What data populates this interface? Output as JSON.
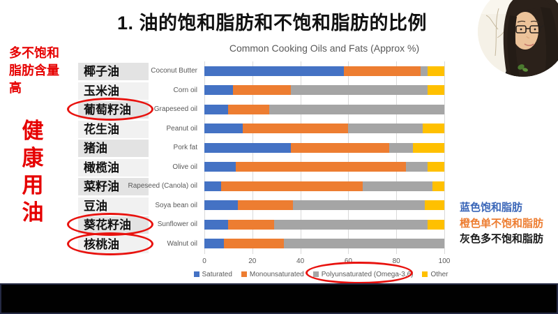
{
  "slide": {
    "title": "1. 油的饱和脂肪和不饱和脂肪的比例"
  },
  "left_panel": {
    "note": "多不饱和脂肪含量高",
    "headline": "健康用油",
    "text_color": "#e60000"
  },
  "oil_list": {
    "items": [
      {
        "label": "椰子油",
        "circled": false
      },
      {
        "label": "玉米油",
        "circled": false
      },
      {
        "label": "葡萄籽油",
        "circled": true
      },
      {
        "label": "花生油",
        "circled": false
      },
      {
        "label": "猪油",
        "circled": false
      },
      {
        "label": "橄榄油",
        "circled": false
      },
      {
        "label": "菜籽油",
        "circled": false
      },
      {
        "label": "豆油",
        "circled": false
      },
      {
        "label": "葵花籽油",
        "circled": true
      },
      {
        "label": "核桃油",
        "circled": true
      }
    ]
  },
  "chart_data": {
    "type": "bar",
    "orientation": "horizontal",
    "stacked": true,
    "title": "Common Cooking Oils and Fats (Approx %)",
    "categories": [
      "Coconut Butter",
      "Corn oil",
      "Grapeseed oil",
      "Peanut oil",
      "Pork fat",
      "Olive oil",
      "Rapeseed (Canola) oil",
      "Soya bean oil",
      "Sunflower oil",
      "Walnut oil"
    ],
    "series": [
      {
        "name": "Saturated",
        "color": "#4472c4",
        "values": [
          58,
          12,
          10,
          16,
          36,
          13,
          7,
          14,
          10,
          8
        ]
      },
      {
        "name": "Monounsaturated",
        "color": "#ed7d31",
        "values": [
          32,
          24,
          17,
          44,
          41,
          71,
          59,
          23,
          19,
          25
        ]
      },
      {
        "name": "Polyunsaturated (Omega-3,6)",
        "color": "#a5a5a5",
        "values": [
          3,
          57,
          73,
          31,
          10,
          9,
          29,
          55,
          64,
          67
        ]
      },
      {
        "name": "Other",
        "color": "#ffc000",
        "values": [
          7,
          7,
          0,
          9,
          13,
          7,
          5,
          8,
          7,
          0
        ]
      }
    ],
    "xlim": [
      0,
      100
    ],
    "x_ticks": [
      0,
      20,
      40,
      60,
      80,
      100
    ],
    "legend_position": "bottom",
    "grid": true,
    "circled_legend_entry": "Polyunsaturated (Omega-3,6)"
  },
  "right_key": {
    "items": [
      {
        "text": "蓝色饱和脂肪",
        "color": "#3a66b8"
      },
      {
        "text": "橙色单不饱和脂肪",
        "color": "#ed7d31"
      },
      {
        "text": "灰色多不饱和脂肪",
        "color": "#1a1a1a"
      }
    ]
  },
  "annotations": {
    "red": "#e8120e"
  },
  "webcam": {
    "description": "presenter webcam circle"
  }
}
